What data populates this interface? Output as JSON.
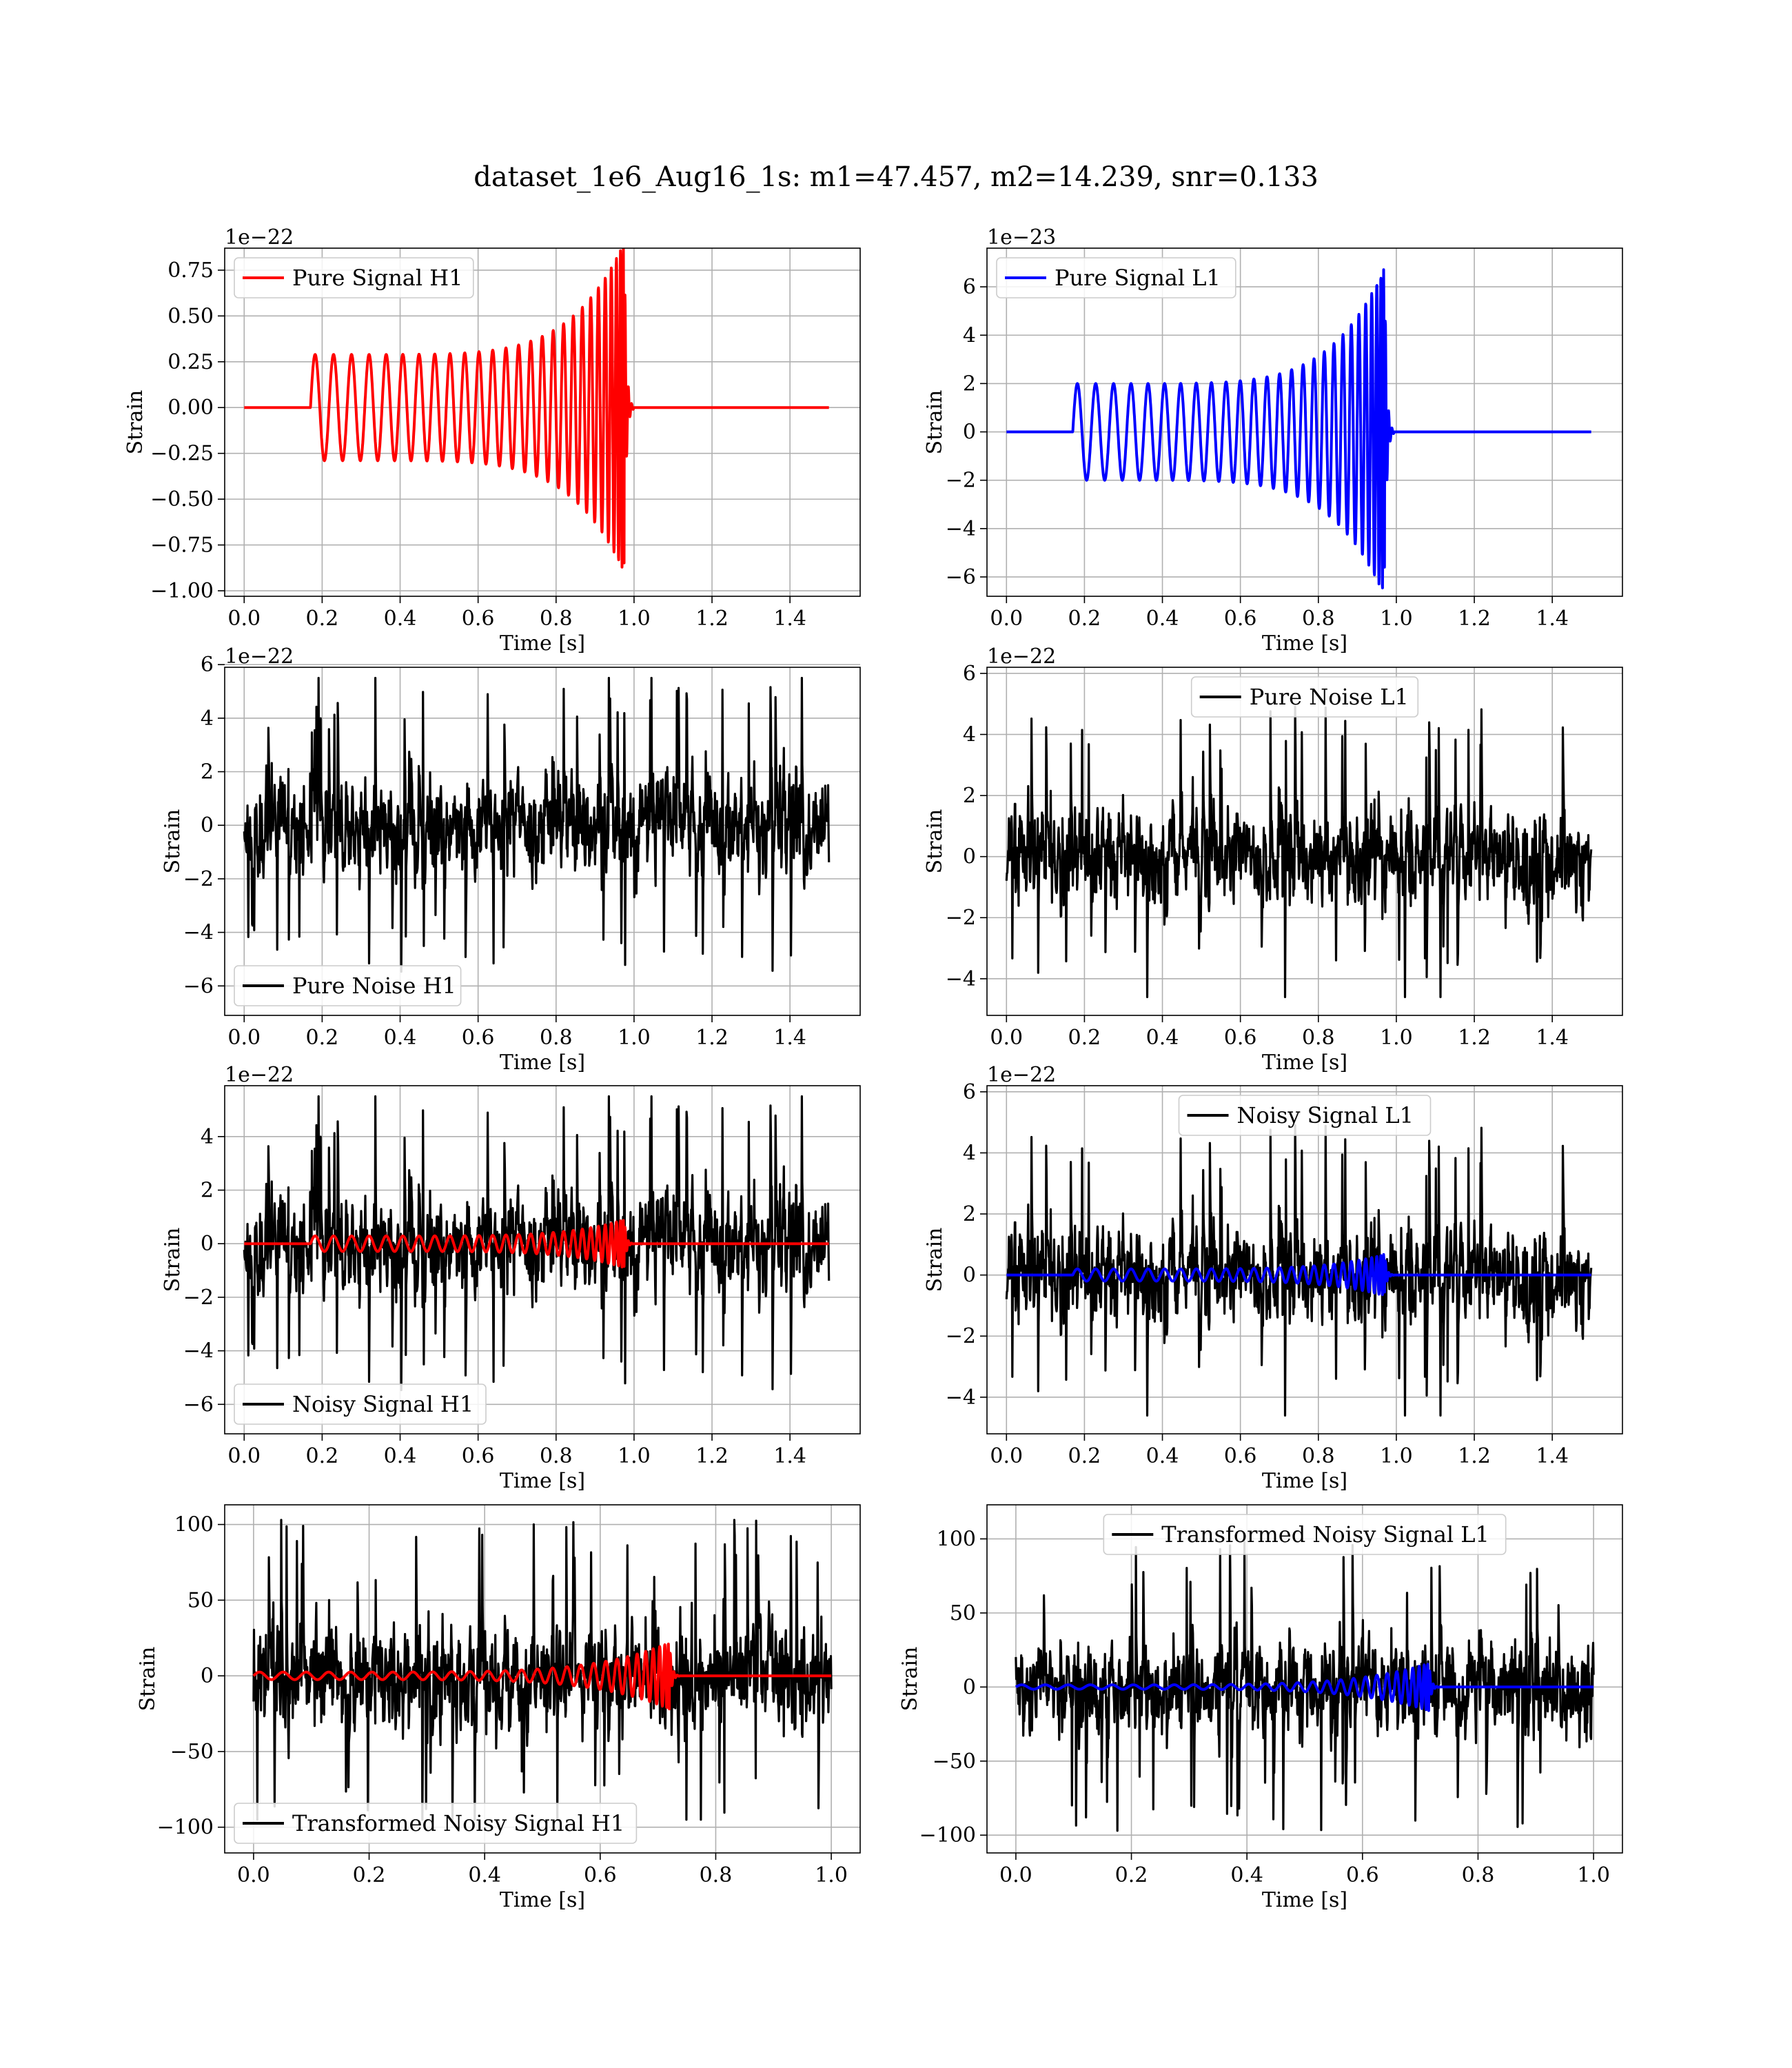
{
  "figure_title": "dataset_1e6_Aug16_1s: m1=47.457, m2=14.239, snr=0.133",
  "colors": {
    "h1_signal": "#ff0000",
    "l1_signal": "#0000ff",
    "noise": "#000000"
  },
  "chart_data": [
    {
      "id": "pure-signal-h1",
      "type": "line",
      "xlabel": "Time [s]",
      "ylabel": "Strain",
      "offset_label": "1e−22",
      "xlim": [
        -0.05,
        1.58
      ],
      "ylim": [
        -1.03,
        0.87
      ],
      "xticks": [
        0.0,
        0.2,
        0.4,
        0.6,
        0.8,
        1.0,
        1.2,
        1.4
      ],
      "xtick_labels": [
        "0.0",
        "0.2",
        "0.4",
        "0.6",
        "0.8",
        "1.0",
        "1.2",
        "1.4"
      ],
      "yticks": [
        -1.0,
        -0.75,
        -0.5,
        -0.25,
        0.0,
        0.25,
        0.5,
        0.75
      ],
      "ytick_labels": [
        "−1.00",
        "−0.75",
        "−0.50",
        "−0.25",
        "0.00",
        "0.25",
        "0.50",
        "0.75"
      ],
      "legend": {
        "location": "upper left",
        "entries": [
          {
            "label": "Pure Signal H1",
            "color": "#ff0000"
          }
        ]
      },
      "series": [
        {
          "name": "Pure Signal H1",
          "color": "#ff0000",
          "kind": "chirp",
          "t_start": 0.0,
          "t_end": 1.5,
          "t_on": 0.17,
          "t_merge": 0.975,
          "amp_start": 0.29,
          "amp_peak": 0.9,
          "cycles": 27,
          "ringdown": 0.025
        }
      ]
    },
    {
      "id": "pure-signal-l1",
      "type": "line",
      "xlabel": "Time [s]",
      "ylabel": "Strain",
      "offset_label": "1e−23",
      "xlim": [
        -0.05,
        1.58
      ],
      "ylim": [
        -6.8,
        7.6
      ],
      "xticks": [
        0.0,
        0.2,
        0.4,
        0.6,
        0.8,
        1.0,
        1.2,
        1.4
      ],
      "xtick_labels": [
        "0.0",
        "0.2",
        "0.4",
        "0.6",
        "0.8",
        "1.0",
        "1.2",
        "1.4"
      ],
      "yticks": [
        -6,
        -4,
        -2,
        0,
        2,
        4,
        6
      ],
      "ytick_labels": [
        "−6",
        "−4",
        "−2",
        "0",
        "2",
        "4",
        "6"
      ],
      "legend": {
        "location": "upper left",
        "entries": [
          {
            "label": "Pure Signal L1",
            "color": "#0000ff"
          }
        ]
      },
      "series": [
        {
          "name": "Pure Signal L1",
          "color": "#0000ff",
          "kind": "chirp",
          "t_start": 0.0,
          "t_end": 1.5,
          "t_on": 0.17,
          "t_merge": 0.97,
          "amp_start": 2.0,
          "amp_peak": 6.8,
          "cycles": 27,
          "ringdown": 0.025
        }
      ]
    },
    {
      "id": "pure-noise-h1",
      "type": "line",
      "xlabel": "Time [s]",
      "ylabel": "Strain",
      "offset_label": "1e−22",
      "xlim": [
        -0.05,
        1.58
      ],
      "ylim": [
        -7.1,
        5.9
      ],
      "xticks": [
        0.0,
        0.2,
        0.4,
        0.6,
        0.8,
        1.0,
        1.2,
        1.4
      ],
      "xtick_labels": [
        "0.0",
        "0.2",
        "0.4",
        "0.6",
        "0.8",
        "1.0",
        "1.2",
        "1.4"
      ],
      "yticks": [
        -6,
        -4,
        -2,
        0,
        2,
        4,
        6
      ],
      "ytick_labels": [
        "−6",
        "−4",
        "−2",
        "0",
        "2",
        "4",
        "6"
      ],
      "legend": {
        "location": "lower left",
        "entries": [
          {
            "label": "Pure Noise H1",
            "color": "#000000"
          }
        ]
      },
      "series": [
        {
          "name": "Pure Noise H1",
          "color": "#000000",
          "kind": "noise",
          "t_start": 0.0,
          "t_end": 1.5,
          "sigma": 1.5,
          "seed": 11,
          "min": -6.6,
          "max": 5.5
        }
      ]
    },
    {
      "id": "pure-noise-l1",
      "type": "line",
      "xlabel": "Time [s]",
      "ylabel": "Strain",
      "offset_label": "1e−22",
      "xlim": [
        -0.05,
        1.58
      ],
      "ylim": [
        -5.2,
        6.2
      ],
      "xticks": [
        0.0,
        0.2,
        0.4,
        0.6,
        0.8,
        1.0,
        1.2,
        1.4
      ],
      "xtick_labels": [
        "0.0",
        "0.2",
        "0.4",
        "0.6",
        "0.8",
        "1.0",
        "1.2",
        "1.4"
      ],
      "yticks": [
        -4,
        -2,
        0,
        2,
        4,
        6
      ],
      "ytick_labels": [
        "−4",
        "−2",
        "0",
        "2",
        "4",
        "6"
      ],
      "legend": {
        "location": "upper center",
        "entries": [
          {
            "label": "Pure Noise L1",
            "color": "#000000"
          }
        ]
      },
      "series": [
        {
          "name": "Pure Noise L1",
          "color": "#000000",
          "kind": "noise",
          "t_start": 0.0,
          "t_end": 1.5,
          "sigma": 1.3,
          "seed": 23,
          "min": -4.6,
          "max": 5.6
        }
      ]
    },
    {
      "id": "noisy-signal-h1",
      "type": "line",
      "xlabel": "Time [s]",
      "ylabel": "Strain",
      "offset_label": "1e−22",
      "xlim": [
        -0.05,
        1.58
      ],
      "ylim": [
        -7.1,
        5.9
      ],
      "xticks": [
        0.0,
        0.2,
        0.4,
        0.6,
        0.8,
        1.0,
        1.2,
        1.4
      ],
      "xtick_labels": [
        "0.0",
        "0.2",
        "0.4",
        "0.6",
        "0.8",
        "1.0",
        "1.2",
        "1.4"
      ],
      "yticks": [
        -6,
        -4,
        -2,
        0,
        2,
        4
      ],
      "ytick_labels": [
        "−6",
        "−4",
        "−2",
        "0",
        "2",
        "4"
      ],
      "legend": {
        "location": "lower left",
        "entries": [
          {
            "label": "Noisy Signal H1",
            "color": "#000000"
          }
        ]
      },
      "series": [
        {
          "name": "Noisy Signal H1",
          "color": "#000000",
          "kind": "noise",
          "t_start": 0.0,
          "t_end": 1.5,
          "sigma": 1.5,
          "seed": 11,
          "min": -6.6,
          "max": 5.5
        },
        {
          "color": "#ff0000",
          "kind": "chirp",
          "t_start": 0.0,
          "t_end": 1.5,
          "t_on": 0.17,
          "t_merge": 0.975,
          "amp_start": 0.29,
          "amp_peak": 0.9,
          "cycles": 27,
          "ringdown": 0.025
        }
      ]
    },
    {
      "id": "noisy-signal-l1",
      "type": "line",
      "xlabel": "Time [s]",
      "ylabel": "Strain",
      "offset_label": "1e−22",
      "xlim": [
        -0.05,
        1.58
      ],
      "ylim": [
        -5.2,
        6.2
      ],
      "xticks": [
        0.0,
        0.2,
        0.4,
        0.6,
        0.8,
        1.0,
        1.2,
        1.4
      ],
      "xtick_labels": [
        "0.0",
        "0.2",
        "0.4",
        "0.6",
        "0.8",
        "1.0",
        "1.2",
        "1.4"
      ],
      "yticks": [
        -4,
        -2,
        0,
        2,
        4,
        6
      ],
      "ytick_labels": [
        "−4",
        "−2",
        "0",
        "2",
        "4",
        "6"
      ],
      "legend": {
        "location": "upper center",
        "entries": [
          {
            "label": "Noisy Signal L1",
            "color": "#000000"
          }
        ]
      },
      "series": [
        {
          "name": "Noisy Signal L1",
          "color": "#000000",
          "kind": "noise",
          "t_start": 0.0,
          "t_end": 1.5,
          "sigma": 1.3,
          "seed": 23,
          "min": -4.6,
          "max": 5.6
        },
        {
          "color": "#0000ff",
          "kind": "chirp",
          "t_start": 0.0,
          "t_end": 1.5,
          "t_on": 0.17,
          "t_merge": 0.97,
          "amp_start": 0.2,
          "amp_peak": 0.68,
          "cycles": 27,
          "ringdown": 0.025
        }
      ]
    },
    {
      "id": "transformed-noisy-signal-h1",
      "type": "line",
      "xlabel": "Time [s]",
      "ylabel": "Strain",
      "offset_label": "",
      "xlim": [
        -0.05,
        1.05
      ],
      "ylim": [
        -117,
        113
      ],
      "xticks": [
        0.0,
        0.2,
        0.4,
        0.6,
        0.8,
        1.0
      ],
      "xtick_labels": [
        "0.0",
        "0.2",
        "0.4",
        "0.6",
        "0.8",
        "1.0"
      ],
      "yticks": [
        -100,
        -50,
        0,
        50,
        100
      ],
      "ytick_labels": [
        "−100",
        "−50",
        "0",
        "50",
        "100"
      ],
      "legend": {
        "location": "lower left",
        "entries": [
          {
            "label": "Transformed Noisy Signal H1",
            "color": "#000000"
          }
        ]
      },
      "series": [
        {
          "name": "Transformed Noisy Signal H1",
          "color": "#000000",
          "kind": "noise",
          "t_start": 0.0,
          "t_end": 1.0,
          "sigma": 28,
          "seed": 37,
          "min": -95,
          "max": 103
        },
        {
          "color": "#ff0000",
          "kind": "chirp",
          "t_start": 0.0,
          "t_end": 1.0,
          "t_on": 0.0,
          "t_merge": 0.72,
          "amp_start": 2.5,
          "amp_peak": 22,
          "cycles": 28,
          "ringdown": 0.018
        }
      ]
    },
    {
      "id": "transformed-noisy-signal-l1",
      "type": "line",
      "xlabel": "Time [s]",
      "ylabel": "Strain",
      "offset_label": "",
      "xlim": [
        -0.05,
        1.05
      ],
      "ylim": [
        -112,
        123
      ],
      "xticks": [
        0.0,
        0.2,
        0.4,
        0.6,
        0.8,
        1.0
      ],
      "xtick_labels": [
        "0.0",
        "0.2",
        "0.4",
        "0.6",
        "0.8",
        "1.0"
      ],
      "yticks": [
        -100,
        -50,
        0,
        50,
        100
      ],
      "ytick_labels": [
        "−100",
        "−50",
        "0",
        "50",
        "100"
      ],
      "legend": {
        "location": "upper center",
        "entries": [
          {
            "label": "Transformed Noisy Signal L1",
            "color": "#000000"
          }
        ]
      },
      "series": [
        {
          "name": "Transformed Noisy Signal L1",
          "color": "#000000",
          "kind": "noise",
          "t_start": 0.0,
          "t_end": 1.0,
          "sigma": 26,
          "seed": 53,
          "min": -98,
          "max": 112
        },
        {
          "color": "#0000ff",
          "kind": "chirp",
          "t_start": 0.0,
          "t_end": 1.0,
          "t_on": 0.0,
          "t_merge": 0.715,
          "amp_start": 1.5,
          "amp_peak": 16,
          "cycles": 28,
          "ringdown": 0.018
        }
      ]
    }
  ]
}
